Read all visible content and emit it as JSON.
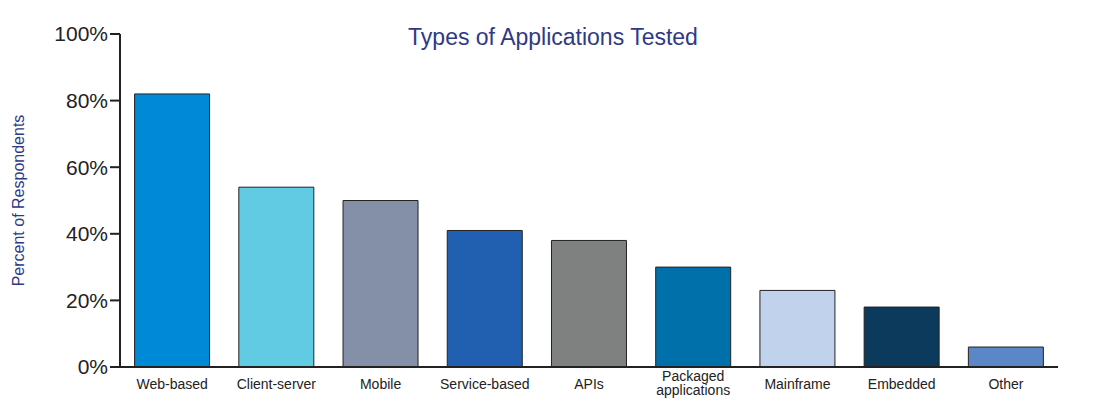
{
  "chart_data": {
    "type": "bar",
    "title": "Types of Applications Tested",
    "y_label": "Percent of Respondents",
    "categories": [
      "Web-based",
      "Client-server",
      "Mobile",
      "Service-based",
      "APIs",
      "Packaged applications",
      "Mainframe",
      "Embedded",
      "Other"
    ],
    "values": [
      82,
      54,
      50,
      41,
      38,
      30,
      23,
      18,
      6
    ],
    "colors": [
      "#0089d6",
      "#61cbe3",
      "#8490a8",
      "#215fb0",
      "#7f8180",
      "#0070ab",
      "#c0d2ec",
      "#0b3a5c",
      "#5b86c8"
    ],
    "ylim": [
      0,
      100
    ],
    "yticks": [
      {
        "value": 0,
        "label": "0%"
      },
      {
        "value": 20,
        "label": "20%"
      },
      {
        "value": 40,
        "label": "40%"
      },
      {
        "value": 60,
        "label": "60%"
      },
      {
        "value": 80,
        "label": "80%"
      },
      {
        "value": 100,
        "label": "100%"
      }
    ],
    "grid": false
  }
}
